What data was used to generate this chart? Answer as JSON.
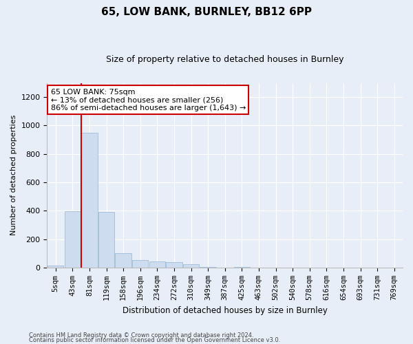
{
  "title1": "65, LOW BANK, BURNLEY, BB12 6PP",
  "title2": "Size of property relative to detached houses in Burnley",
  "xlabel": "Distribution of detached houses by size in Burnley",
  "ylabel": "Number of detached properties",
  "categories": [
    "5sqm",
    "43sqm",
    "81sqm",
    "119sqm",
    "158sqm",
    "196sqm",
    "234sqm",
    "272sqm",
    "310sqm",
    "349sqm",
    "387sqm",
    "425sqm",
    "463sqm",
    "502sqm",
    "540sqm",
    "578sqm",
    "616sqm",
    "654sqm",
    "693sqm",
    "731sqm",
    "769sqm"
  ],
  "values": [
    15,
    395,
    950,
    390,
    100,
    55,
    45,
    38,
    25,
    5,
    0,
    5,
    0,
    0,
    0,
    0,
    0,
    0,
    0,
    0,
    0
  ],
  "bar_color": "#cddcee",
  "bar_edge_color": "#a0bcd8",
  "annotation_line1": "65 LOW BANK: 75sqm",
  "annotation_line2": "← 13% of detached houses are smaller (256)",
  "annotation_line3": "86% of semi-detached houses are larger (1,643) →",
  "annotation_box_color": "#ffffff",
  "annotation_box_edge_color": "#cc0000",
  "ylim": [
    0,
    1300
  ],
  "yticks": [
    0,
    200,
    400,
    600,
    800,
    1000,
    1200
  ],
  "footer1": "Contains HM Land Registry data © Crown copyright and database right 2024.",
  "footer2": "Contains public sector information licensed under the Open Government Licence v3.0.",
  "bg_color": "#e8eef7",
  "plot_bg_color": "#e8eef7",
  "red_line_color": "#cc0000",
  "grid_color": "#ffffff"
}
